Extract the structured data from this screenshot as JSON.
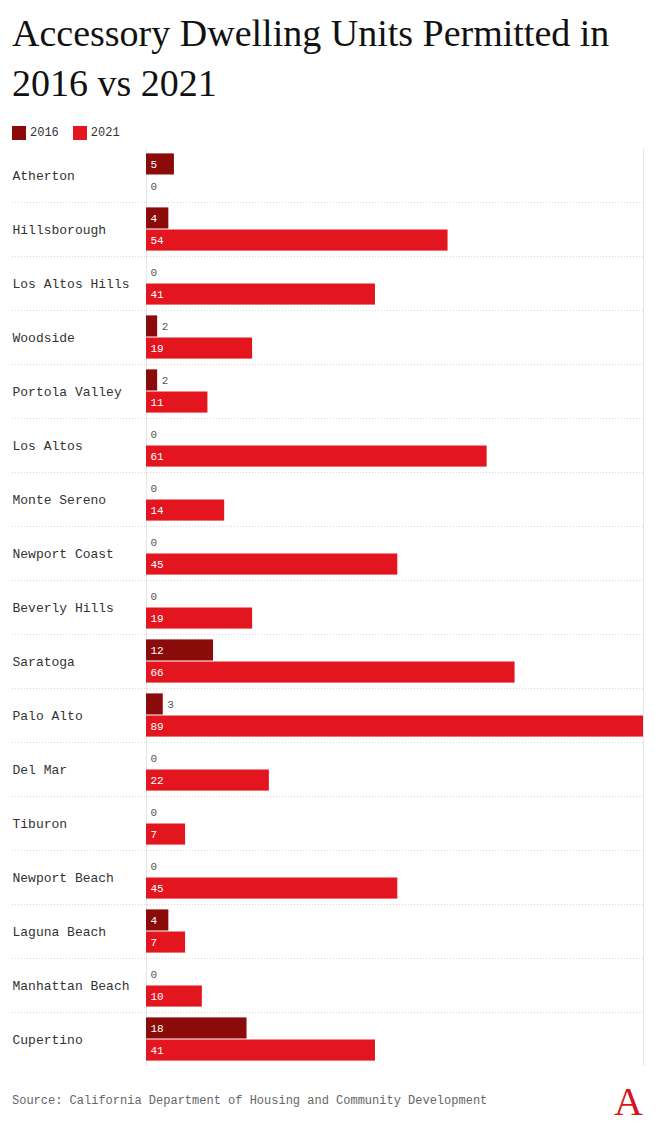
{
  "chart_data": {
    "type": "bar",
    "title": "Accessory Dwelling Units Permitted in 2016 vs 2021",
    "orientation": "horizontal",
    "categories": [
      "Atherton",
      "Hillsborough",
      "Los Altos Hills",
      "Woodside",
      "Portola Valley",
      "Los Altos",
      "Monte Sereno",
      "Newport Coast",
      "Beverly Hills",
      "Saratoga",
      "Palo Alto",
      "Del Mar",
      "Tiburon",
      "Newport Beach",
      "Laguna Beach",
      "Manhattan Beach",
      "Cupertino"
    ],
    "series": [
      {
        "name": "2016",
        "color": "#8b0a0a",
        "values": [
          5,
          4,
          0,
          2,
          2,
          0,
          0,
          0,
          0,
          12,
          3,
          0,
          0,
          0,
          4,
          0,
          18
        ]
      },
      {
        "name": "2021",
        "color": "#e3151f",
        "values": [
          0,
          54,
          41,
          19,
          11,
          61,
          14,
          45,
          19,
          66,
          89,
          22,
          7,
          45,
          7,
          10,
          41
        ]
      }
    ],
    "xlim": [
      0,
      89
    ],
    "xticks": [],
    "data_labels": true,
    "tick_labels": "y",
    "legend": "top-left",
    "source": "Source: California Department of Housing and Community Development",
    "logo": "A"
  }
}
